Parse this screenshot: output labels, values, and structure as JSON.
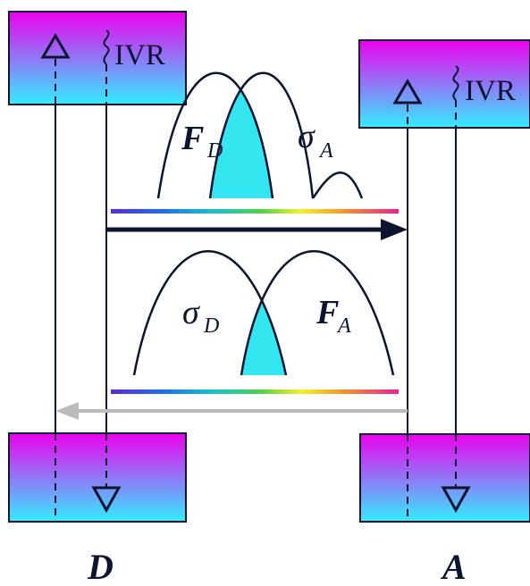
{
  "donor": {
    "label": "D",
    "ivr_label": "IVR",
    "spectrum_upper": {
      "symbol": "F",
      "subscript": "D"
    },
    "spectrum_lower": {
      "symbol": "σ",
      "subscript": "D"
    }
  },
  "acceptor": {
    "label": "A",
    "ivr_label": "IVR",
    "spectrum_upper": {
      "symbol": "σ",
      "subscript": "A"
    },
    "spectrum_lower": {
      "symbol": "F",
      "subscript": "A"
    }
  },
  "colors": {
    "box_top": "#ee00ee",
    "box_bottom": "#33eeff",
    "overlap_fill": "#33e6f0",
    "forward_arrow": "#0d1430",
    "reverse_arrow": "#bcbcbc",
    "line": "#0d1430"
  },
  "icons": [
    "triangle-up-icon",
    "triangle-down-icon",
    "wavy-arrow-icon",
    "rainbow-bar"
  ]
}
